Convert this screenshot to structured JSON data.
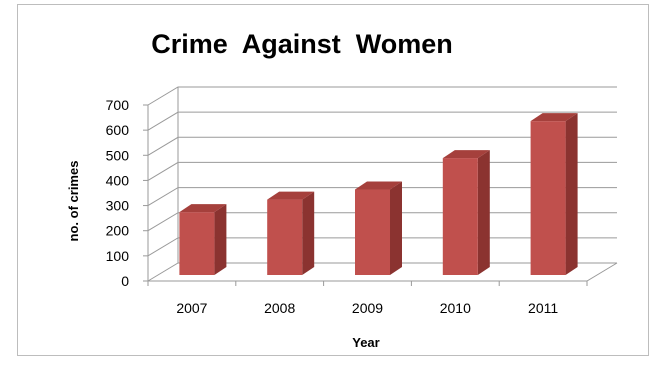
{
  "chart_data": {
    "type": "bar",
    "title": "Crime  Against  Women",
    "xlabel": "Year",
    "ylabel": "no. of crimes",
    "categories": [
      "2007",
      "2008",
      "2009",
      "2010",
      "2011"
    ],
    "values": [
      250,
      300,
      340,
      465,
      612
    ],
    "ylim": [
      0,
      700
    ],
    "yticks": [
      "0",
      "100",
      "200",
      "300",
      "400",
      "500",
      "600",
      "700"
    ],
    "grid": true,
    "legend": "none",
    "style": "3d-column",
    "colors": {
      "bar_front": "#C0504D",
      "bar_side": "#8B3330",
      "bar_top": "#A5403C",
      "grid": "#9a9a9a",
      "text": "#000000"
    }
  }
}
